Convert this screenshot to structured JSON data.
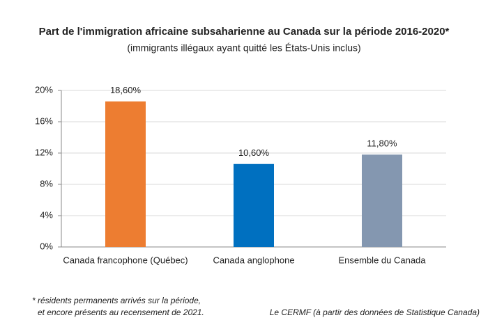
{
  "chart_data": {
    "type": "bar",
    "title": "Part de l'immigration africaine subsaharienne au Canada sur la période 2016-2020*",
    "subtitle": "(immigrants illégaux ayant quitté les États-Unis inclus)",
    "categories": [
      "Canada francophone (Québec)",
      "Canada anglophone",
      "Ensemble du Canada"
    ],
    "values": [
      18.6,
      10.6,
      11.8
    ],
    "value_labels": [
      "18,60%",
      "10,60%",
      "11,80%"
    ],
    "colors": [
      "#ed7d31",
      "#0070c0",
      "#8497b0"
    ],
    "ylim": [
      0,
      20
    ],
    "yticks": [
      {
        "value": 0,
        "label": "0%"
      },
      {
        "value": 4,
        "label": "4%"
      },
      {
        "value": 8,
        "label": "8%"
      },
      {
        "value": 12,
        "label": "12%"
      },
      {
        "value": 16,
        "label": "16%"
      },
      {
        "value": 20,
        "label": "20%"
      }
    ],
    "grid": true,
    "footnote": [
      "* résidents permanents arrivés sur la période,",
      "et encore présents au recensement de 2021."
    ],
    "source": "Le CERMF (à partir des données de Statistique Canada)"
  }
}
